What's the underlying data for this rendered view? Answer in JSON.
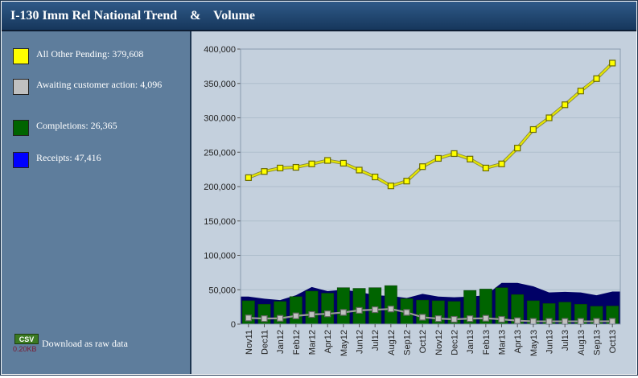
{
  "title": "I-130 Imm Rel National Trend    &    Volume",
  "legend": [
    {
      "label": "All Other Pending: 379,608",
      "color": "#ffff00"
    },
    {
      "label": "Awaiting customer action: 4,096",
      "color": "#c0c0c0"
    },
    {
      "label": "Completions: 26,365",
      "color": "#006400"
    },
    {
      "label": "Receipts: 47,416",
      "color": "#0000ff"
    }
  ],
  "csv": {
    "badge": "CSV",
    "size": "0.20KB",
    "link": "Download as raw data"
  },
  "chart_data": {
    "type": "bar",
    "categories": [
      "Nov11",
      "Dec11",
      "Jan12",
      "Feb12",
      "Mar12",
      "Apr12",
      "May12",
      "Jun12",
      "Jul12",
      "Aug12",
      "Sep12",
      "Oct12",
      "Nov12",
      "Dec12",
      "Jan13",
      "Feb13",
      "Mar13",
      "Apr13",
      "May13",
      "Jun13",
      "Jul13",
      "Aug13",
      "Sep13",
      "Oct13"
    ],
    "ylim": [
      0,
      400000
    ],
    "yticks": [
      0,
      50000,
      100000,
      150000,
      200000,
      250000,
      300000,
      350000,
      400000
    ],
    "ytick_labels": [
      "0",
      "50,000",
      "100,000",
      "150,000",
      "200,000",
      "250,000",
      "300,000",
      "350,000",
      "400,000"
    ],
    "grid": true,
    "series": [
      {
        "name": "All Other Pending",
        "kind": "line",
        "color": "#ffff00",
        "values": [
          213000,
          222000,
          227000,
          228000,
          233000,
          238000,
          234000,
          224000,
          214000,
          201000,
          208000,
          229000,
          241000,
          248000,
          240000,
          227000,
          233000,
          256000,
          283000,
          300000,
          319000,
          339000,
          357000,
          379608
        ]
      },
      {
        "name": "Awaiting customer action",
        "kind": "line",
        "color": "#c0c0c0",
        "values": [
          9000,
          8000,
          8500,
          12000,
          14000,
          15000,
          17000,
          20000,
          21000,
          22000,
          17000,
          10000,
          8000,
          7000,
          8000,
          8500,
          7000,
          5000,
          4000,
          4000,
          4000,
          4000,
          4000,
          4096
        ]
      },
      {
        "name": "Completions",
        "kind": "bar",
        "color": "#006400",
        "values": [
          34000,
          29000,
          33000,
          40000,
          48000,
          45000,
          53000,
          52000,
          53000,
          56000,
          37000,
          35000,
          34000,
          33000,
          49000,
          51000,
          53000,
          43000,
          34000,
          30000,
          32000,
          29000,
          26000,
          26365
        ]
      },
      {
        "name": "Receipts",
        "kind": "area",
        "color": "#000066",
        "values": [
          40000,
          37000,
          35000,
          42000,
          54000,
          48000,
          50000,
          47000,
          42000,
          41000,
          38000,
          44000,
          40000,
          39000,
          40000,
          42000,
          60000,
          60000,
          55000,
          46000,
          47000,
          46000,
          42000,
          47416
        ]
      }
    ]
  }
}
